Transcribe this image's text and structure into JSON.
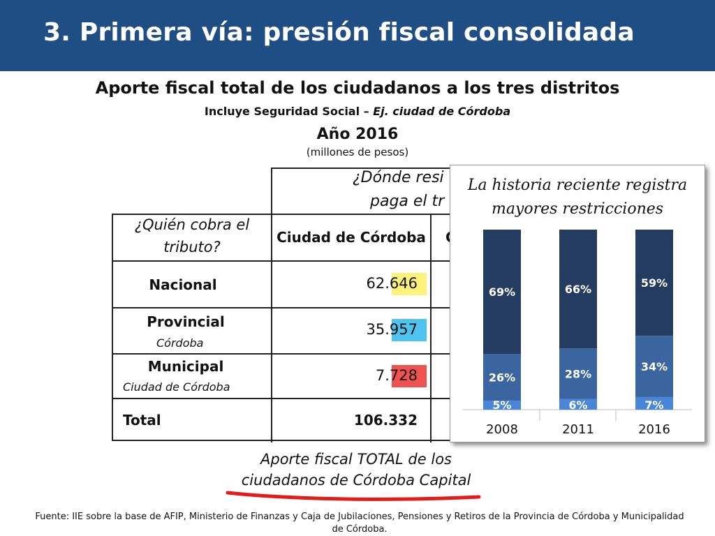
{
  "slide": {
    "title": "3. Primera vía: presión fiscal consolidada",
    "subtitle": "Aporte fiscal total de los ciudadanos a los tres distritos",
    "subtitle2_plain": "Incluye Seguridad Social – ",
    "subtitle2_italic": "Ej. ciudad de Córdoba",
    "year": "Año 2016",
    "unit": "(millones de pesos)"
  },
  "table": {
    "top_header_line1": "¿Dónde resi",
    "top_header_line2": "paga el tr",
    "row_header_line1": "¿Quién cobra el",
    "row_header_line2": "tributo?",
    "column_header": "Ciudad de Córdoba",
    "column_header_cut": "C",
    "rows": [
      {
        "label": "Nacional",
        "sublabel": "",
        "value": "62.646",
        "value_a": "62.",
        "value_b": "646",
        "color": "#fff27a"
      },
      {
        "label": "Provincial",
        "sublabel": "Córdoba",
        "value": "35.957",
        "value_a": "35.",
        "value_b": "957",
        "color": "#4fc3f0"
      },
      {
        "label": "Municipal",
        "sublabel": "Ciudad de Córdoba",
        "value": "7.728",
        "value_a": "7.",
        "value_b": "728",
        "color": "#f05252"
      }
    ],
    "total_label": "Total",
    "total_value": "106.332",
    "note_line1": "Aporte fiscal TOTAL de los",
    "note_line2": "ciudadanos de Córdoba Capital"
  },
  "inset": {
    "title_line1": "La historia reciente registra",
    "title_line2": "mayores restricciones"
  },
  "chart_data": {
    "type": "bar",
    "stacked": true,
    "categories": [
      "2008",
      "2011",
      "2016"
    ],
    "series": [
      {
        "values": [
          5,
          6,
          7
        ],
        "labels": [
          "5%",
          "6%",
          "7%"
        ],
        "color": "#4a86d8"
      },
      {
        "values": [
          26,
          28,
          34
        ],
        "labels": [
          "26%",
          "28%",
          "34%"
        ],
        "color": "#3a659e"
      },
      {
        "values": [
          69,
          66,
          59
        ],
        "labels": [
          "69%",
          "66%",
          "59%"
        ],
        "color": "#233c60"
      }
    ],
    "ylim": [
      0,
      100
    ],
    "grid": false,
    "legend": "none"
  },
  "footer": {
    "line1": "Fuente: IIE sobre la base de AFIP, Ministerio de Finanzas y Caja de Jubilaciones, Pensiones y Retiros de la Provincia de Córdoba y Municipalidad",
    "line2": "de Córdoba."
  }
}
